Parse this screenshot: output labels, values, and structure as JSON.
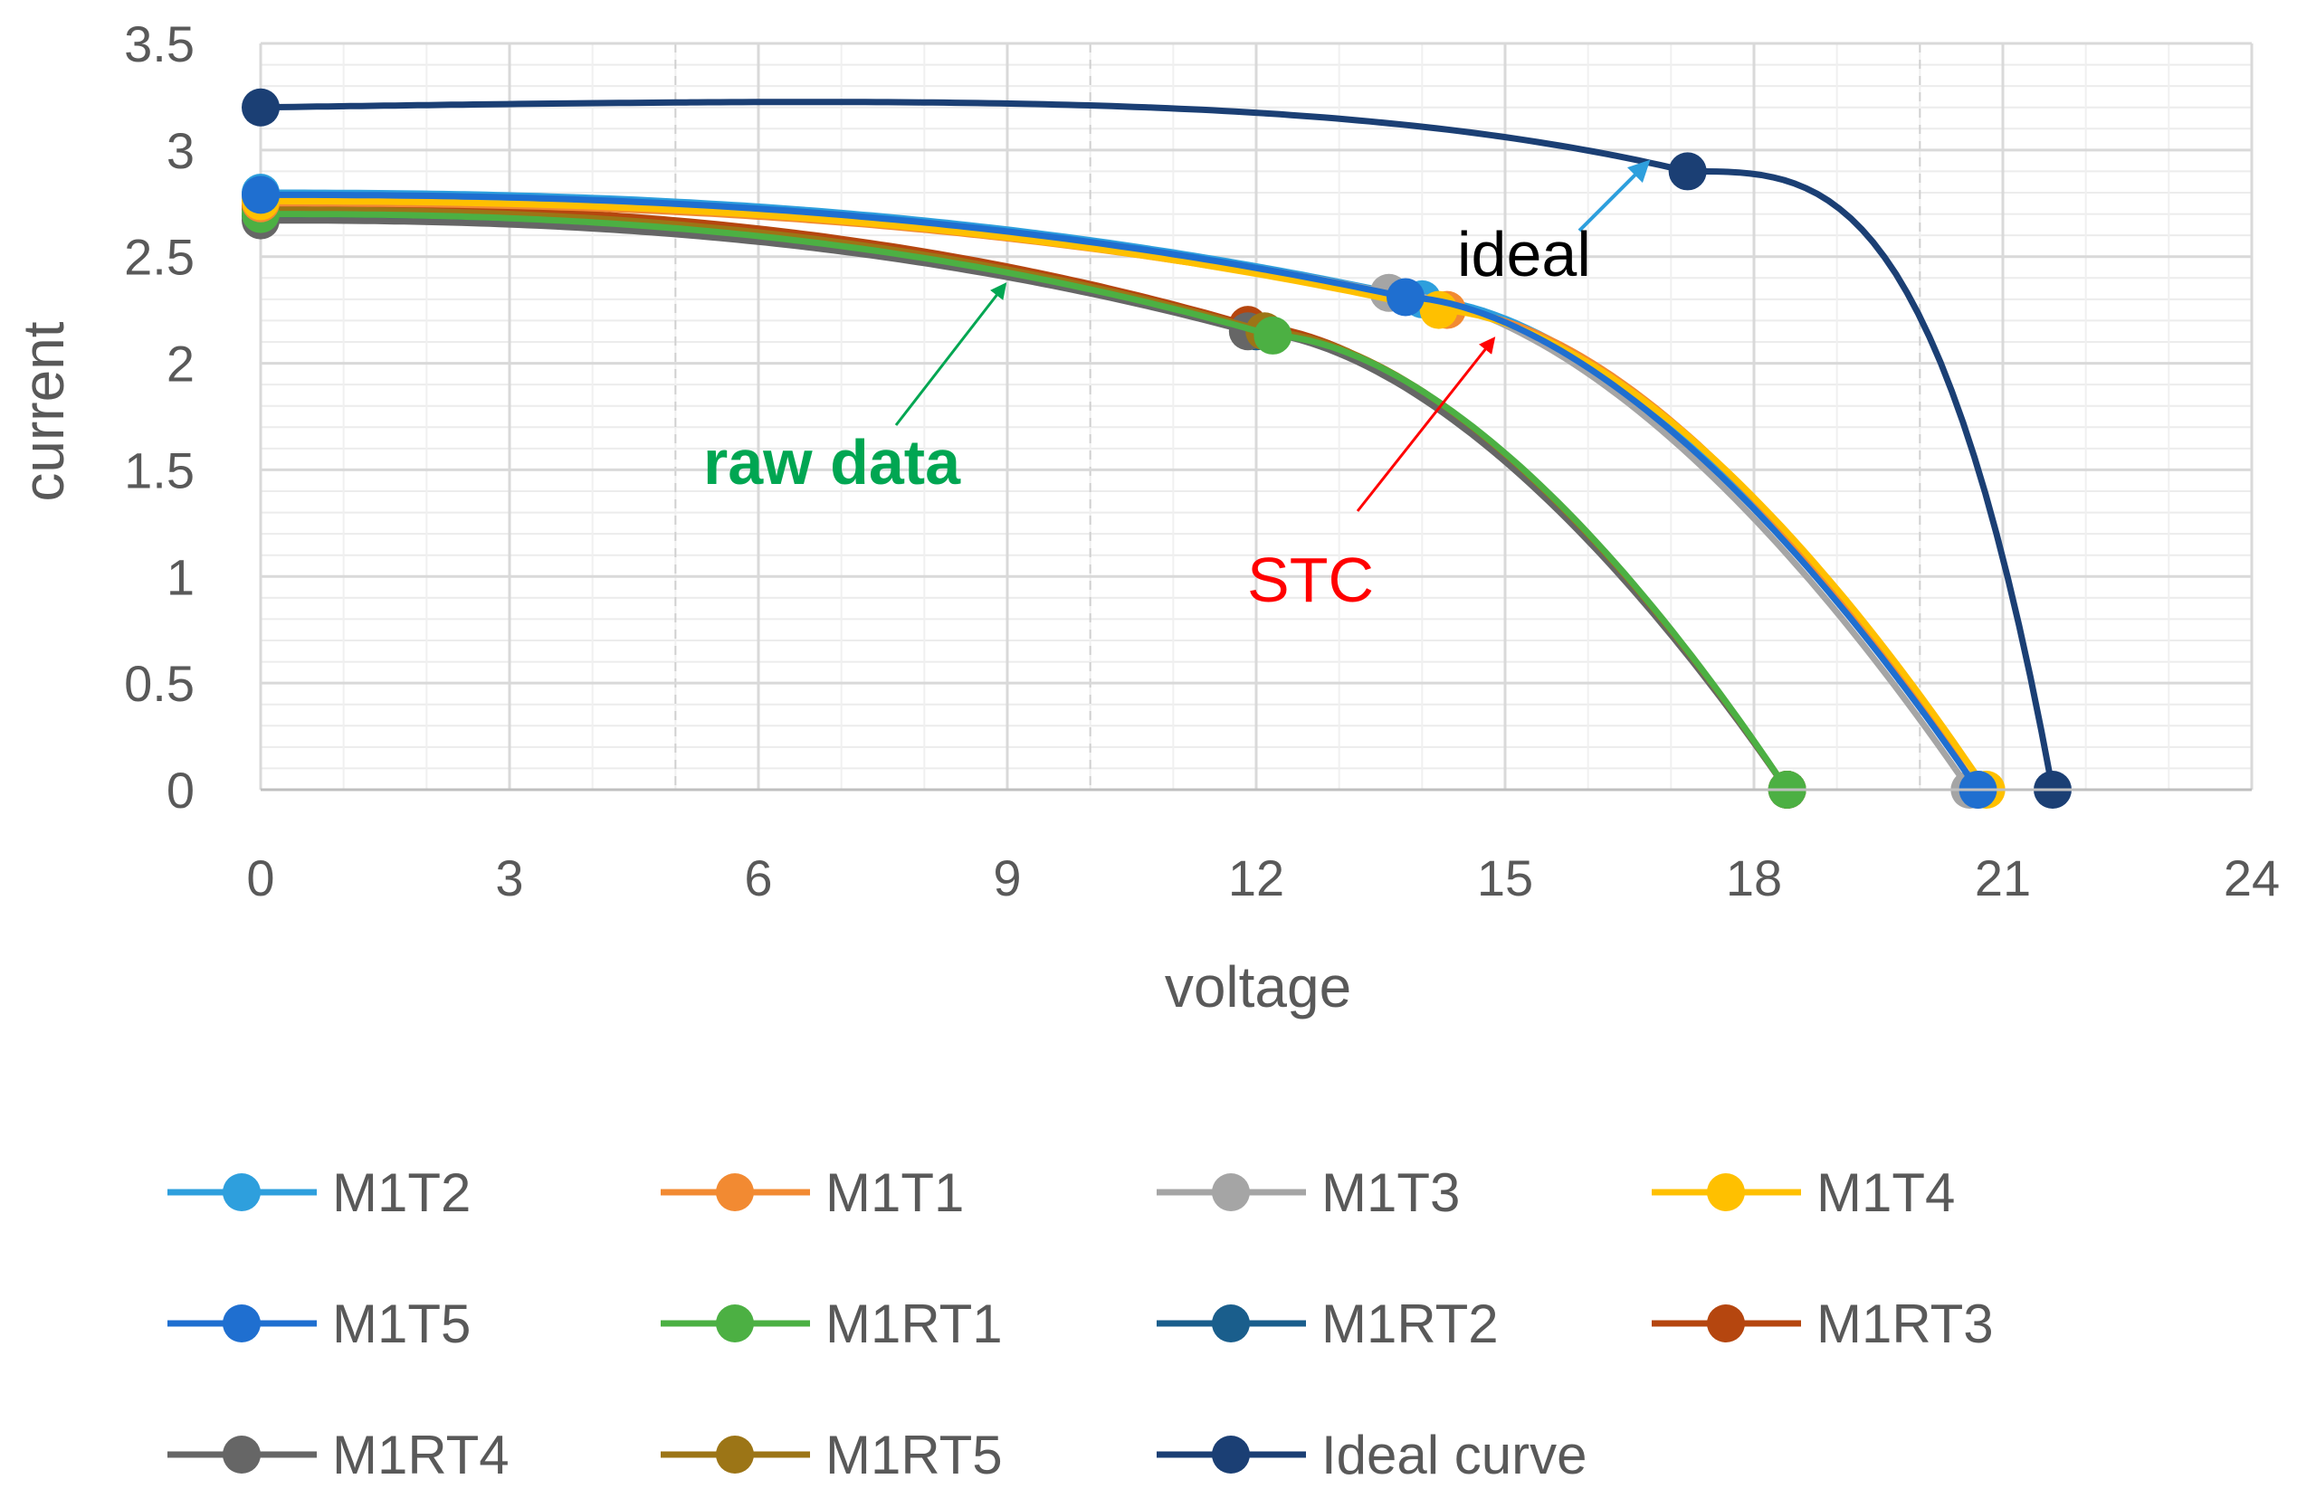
{
  "chart_data": {
    "type": "line",
    "title": "",
    "xlabel": "voltage",
    "ylabel": "current",
    "xlim": [
      0,
      24
    ],
    "ylim": [
      0,
      3.5
    ],
    "xticks": [
      "0",
      "3",
      "6",
      "9",
      "12",
      "15",
      "18",
      "21",
      "24"
    ],
    "yticks": [
      "0",
      "0.5",
      "1",
      "1.5",
      "2",
      "2.5",
      "3",
      "3.5"
    ],
    "grid": "on",
    "legend_position": "bottom",
    "series": [
      {
        "name": "M1T2",
        "color": "#2E9FDD",
        "x": [
          0,
          14.0,
          20.7
        ],
        "y": [
          2.8,
          2.3,
          0
        ]
      },
      {
        "name": "M1T1",
        "color": "#F28A32",
        "x": [
          0,
          14.3,
          20.7
        ],
        "y": [
          2.75,
          2.25,
          0
        ]
      },
      {
        "name": "M1T3",
        "color": "#A5A5A5",
        "x": [
          0,
          13.6,
          20.6
        ],
        "y": [
          2.78,
          2.33,
          0
        ]
      },
      {
        "name": "M1T4",
        "color": "#FFC000",
        "x": [
          0,
          14.2,
          20.8
        ],
        "y": [
          2.76,
          2.25,
          0
        ]
      },
      {
        "name": "M1T5",
        "color": "#1F6FD0",
        "x": [
          0,
          13.8,
          20.7
        ],
        "y": [
          2.79,
          2.31,
          0
        ]
      },
      {
        "name": "M1RT1",
        "color": "#4CB043",
        "x": [
          0,
          12.2,
          18.4
        ],
        "y": [
          2.7,
          2.13,
          0
        ]
      },
      {
        "name": "M1RT2",
        "color": "#1A5E8C",
        "x": [
          0,
          12.0,
          18.4
        ],
        "y": [
          2.69,
          2.15,
          0
        ]
      },
      {
        "name": "M1RT3",
        "color": "#B5460F",
        "x": [
          0,
          11.9,
          18.4
        ],
        "y": [
          2.74,
          2.18,
          0
        ]
      },
      {
        "name": "M1RT4",
        "color": "#666666",
        "x": [
          0,
          11.9,
          18.4
        ],
        "y": [
          2.67,
          2.15,
          0
        ]
      },
      {
        "name": "M1RT5",
        "color": "#9C7516",
        "x": [
          0,
          12.1,
          18.4
        ],
        "y": [
          2.72,
          2.15,
          0
        ]
      },
      {
        "name": "Ideal curve",
        "color": "#1B3F74",
        "x": [
          0,
          17.2,
          21.6
        ],
        "y": [
          3.2,
          2.9,
          0
        ]
      }
    ],
    "annotations": [
      {
        "text": "ideal",
        "color": "#000000",
        "arrow_color": "#2E9FDD"
      },
      {
        "text": "raw data",
        "color": "#00A652",
        "arrow_color": "#00A652"
      },
      {
        "text": "STC",
        "color": "#FF0000",
        "arrow_color": "#FF0000"
      }
    ]
  }
}
